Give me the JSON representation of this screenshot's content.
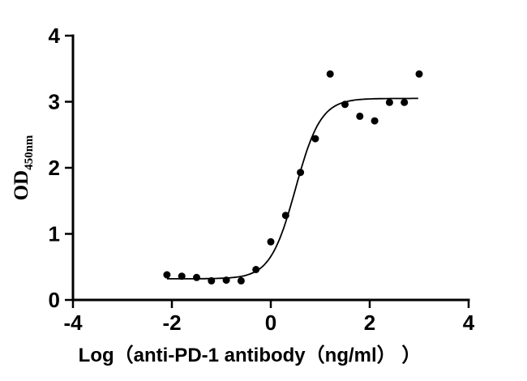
{
  "chart_data": {
    "type": "scatter",
    "title": "",
    "xlabel": "Log（anti-PD-1 antibody（ng/ml） ）",
    "ylabel_main": "OD",
    "ylabel_sub": "450nm",
    "xlim": [
      -4,
      4
    ],
    "ylim": [
      0,
      4
    ],
    "xticks": [
      -4,
      -2,
      0,
      2,
      4
    ],
    "yticks": [
      0,
      1,
      2,
      3,
      4
    ],
    "grid": false,
    "legend": "none",
    "points": [
      {
        "x": -2.1,
        "y": 0.38
      },
      {
        "x": -1.8,
        "y": 0.36
      },
      {
        "x": -1.5,
        "y": 0.34
      },
      {
        "x": -1.2,
        "y": 0.29
      },
      {
        "x": -0.9,
        "y": 0.3
      },
      {
        "x": -0.6,
        "y": 0.29
      },
      {
        "x": -0.3,
        "y": 0.46
      },
      {
        "x": 0.0,
        "y": 0.88
      },
      {
        "x": 0.3,
        "y": 1.28
      },
      {
        "x": 0.6,
        "y": 1.93
      },
      {
        "x": 0.9,
        "y": 2.44
      },
      {
        "x": 1.2,
        "y": 3.42
      },
      {
        "x": 1.5,
        "y": 2.96
      },
      {
        "x": 1.8,
        "y": 2.78
      },
      {
        "x": 2.1,
        "y": 2.71
      },
      {
        "x": 2.4,
        "y": 2.99
      },
      {
        "x": 2.7,
        "y": 2.99
      },
      {
        "x": 3.0,
        "y": 3.42
      }
    ],
    "fit_curve": {
      "model": "4PL-sigmoid",
      "bottom": 0.32,
      "top": 3.05,
      "logEC50": 0.5,
      "hillSlope": 1.7,
      "xstart": -2.1,
      "xend": 3.0
    },
    "colors": {
      "points": "#000000",
      "curve": "#000000",
      "axis": "#000000",
      "background": "#ffffff"
    }
  }
}
